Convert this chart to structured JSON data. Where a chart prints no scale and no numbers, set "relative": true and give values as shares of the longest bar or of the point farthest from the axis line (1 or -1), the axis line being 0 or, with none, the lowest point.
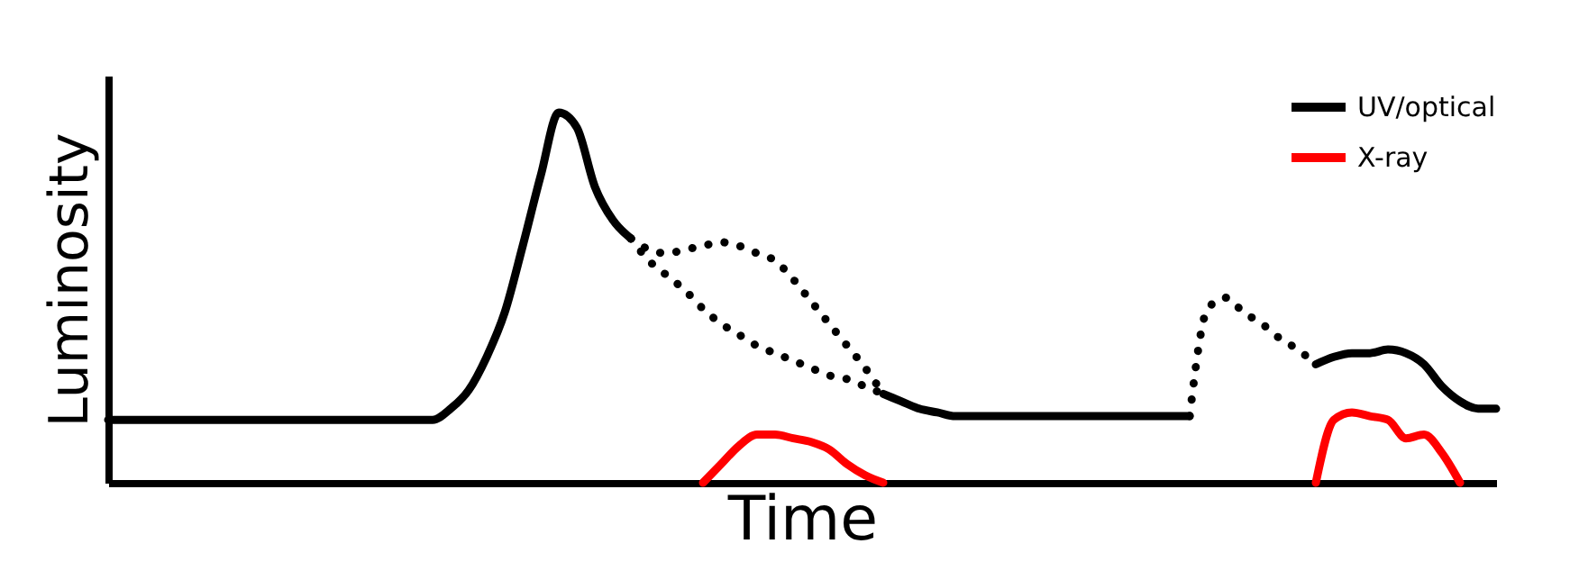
{
  "chart_data": {
    "type": "line",
    "relative": true,
    "xlabel": "Time",
    "ylabel": "Luminosity",
    "tick_labels": false,
    "legend": "top right",
    "categories": [
      null,
      null,
      null,
      null,
      null,
      null,
      null,
      null,
      null,
      null,
      null,
      null,
      null,
      null,
      null,
      null,
      null,
      null,
      null,
      null,
      null,
      null,
      null,
      null,
      null,
      null,
      null,
      null,
      null,
      null,
      null,
      null,
      null,
      null,
      null,
      null,
      null,
      null,
      null,
      null,
      null,
      null,
      null,
      null,
      null,
      null,
      null,
      null,
      null,
      null,
      null,
      null,
      null,
      null,
      null,
      null,
      null,
      null,
      null,
      null,
      null,
      null,
      null,
      null,
      null,
      null,
      null,
      null,
      null,
      null,
      null,
      null,
      null,
      null,
      null,
      null,
      null,
      null
    ],
    "series": [
      {
        "name": "UV/optical",
        "color": "#000000",
        "line_style": "solid",
        "values": [
          0.17,
          0.17,
          0.17,
          0.17,
          0.17,
          0.17,
          0.17,
          0.17,
          0.17,
          0.17,
          0.17,
          0.17,
          0.17,
          0.17,
          0.17,
          0.17,
          0.17,
          0.17,
          0.17,
          0.2,
          0.25,
          0.34,
          0.46,
          0.64,
          0.83,
          1,
          0.96,
          0.8,
          0.71,
          0.66,
          null,
          null,
          null,
          null,
          null,
          null,
          null,
          null,
          null,
          null,
          null,
          null,
          null,
          0.24,
          0.22,
          0.2,
          0.19,
          0.18,
          0.18,
          0.18,
          0.18,
          0.18,
          0.18,
          0.18,
          0.18,
          0.18,
          0.18,
          0.18,
          0.18,
          0.18,
          0.18,
          null,
          null,
          null,
          null,
          null,
          null,
          0.32,
          0.34,
          0.35,
          0.35,
          0.36,
          0.35,
          0.32,
          0.26,
          0.22,
          0.2,
          0.2
        ]
      },
      {
        "color": "#000000",
        "line_style": "dotted",
        "values": [
          null,
          null,
          null,
          null,
          null,
          null,
          null,
          null,
          null,
          null,
          null,
          null,
          null,
          null,
          null,
          null,
          null,
          null,
          null,
          null,
          null,
          null,
          null,
          null,
          null,
          null,
          null,
          null,
          null,
          0.66,
          0.6,
          0.56,
          0.52,
          0.47,
          0.43,
          0.4,
          0.37,
          0.35,
          0.33,
          0.31,
          0.29,
          0.28,
          0.26,
          0.24,
          null,
          null,
          null,
          null,
          null,
          null,
          null,
          null,
          null,
          null,
          null,
          null,
          null,
          null,
          null,
          null,
          null,
          null,
          null,
          null,
          null,
          null,
          null,
          null,
          null,
          null,
          null,
          null,
          null,
          null,
          null,
          null,
          null,
          null
        ]
      },
      {
        "color": "#000000",
        "line_style": "dotted",
        "values": [
          null,
          null,
          null,
          null,
          null,
          null,
          null,
          null,
          null,
          null,
          null,
          null,
          null,
          null,
          null,
          null,
          null,
          null,
          null,
          null,
          null,
          null,
          null,
          null,
          null,
          null,
          null,
          null,
          null,
          0.66,
          0.63,
          0.62,
          0.63,
          0.64,
          0.65,
          0.64,
          0.62,
          0.6,
          0.55,
          0.49,
          0.43,
          0.37,
          0.31,
          0.24,
          null,
          null,
          null,
          null,
          null,
          null,
          null,
          null,
          null,
          null,
          null,
          null,
          null,
          null,
          null,
          null,
          null,
          null,
          null,
          null,
          null,
          null,
          null,
          null,
          null,
          null,
          null,
          null,
          null,
          null,
          null,
          null,
          null,
          null
        ]
      },
      {
        "color": "#000000",
        "line_style": "dotted",
        "values": [
          null,
          null,
          null,
          null,
          null,
          null,
          null,
          null,
          null,
          null,
          null,
          null,
          null,
          null,
          null,
          null,
          null,
          null,
          null,
          null,
          null,
          null,
          null,
          null,
          null,
          null,
          null,
          null,
          null,
          null,
          null,
          null,
          null,
          null,
          null,
          null,
          null,
          null,
          null,
          null,
          null,
          null,
          null,
          null,
          null,
          null,
          null,
          null,
          null,
          null,
          null,
          null,
          null,
          null,
          null,
          null,
          null,
          null,
          null,
          null,
          0.18,
          0.47,
          0.5,
          0.46,
          0.43,
          0.39,
          0.36,
          0.32,
          null,
          null,
          null,
          null,
          null,
          null,
          null,
          null,
          null,
          null
        ]
      },
      {
        "name": "X-ray",
        "color": "#ff0000",
        "line_style": "solid",
        "values": [
          null,
          null,
          null,
          null,
          null,
          null,
          null,
          null,
          null,
          null,
          null,
          null,
          null,
          null,
          null,
          null,
          null,
          null,
          null,
          null,
          null,
          null,
          null,
          null,
          null,
          null,
          null,
          null,
          null,
          null,
          null,
          null,
          null,
          0,
          0.05,
          0.1,
          0.13,
          0.13,
          0.12,
          0.11,
          0.09,
          0.05,
          0.02,
          0,
          null,
          null,
          null,
          null,
          null,
          null,
          null,
          null,
          null,
          null,
          null,
          null,
          null,
          null,
          null,
          null,
          null,
          null,
          null,
          null,
          null,
          null,
          null,
          0,
          0.17,
          0.19,
          0.18,
          0.17,
          0.12,
          0.13,
          0.08,
          0,
          null,
          null
        ]
      }
    ]
  }
}
